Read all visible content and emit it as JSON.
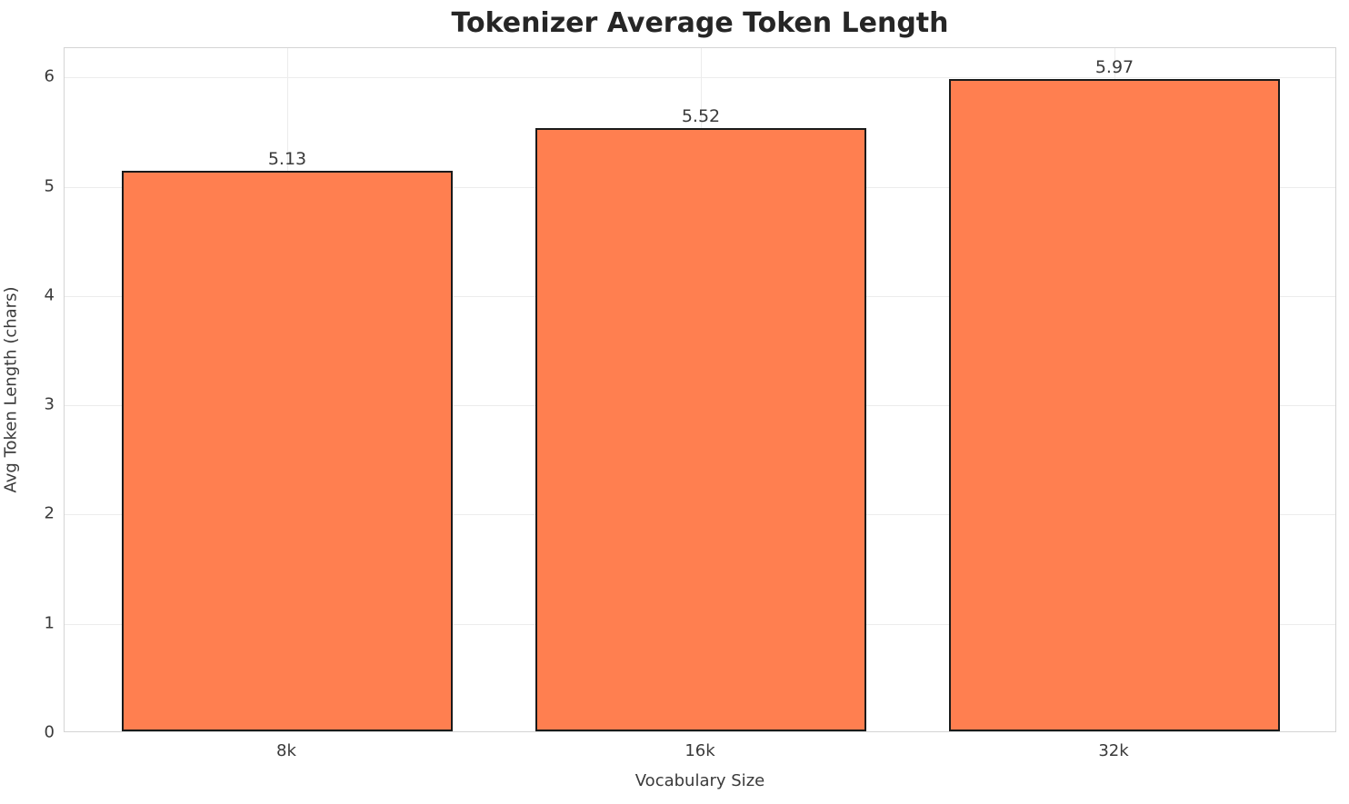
{
  "chart_data": {
    "type": "bar",
    "title": "Tokenizer Average Token Length",
    "xlabel": "Vocabulary Size",
    "ylabel": "Avg Token Length (chars)",
    "categories": [
      "8k",
      "16k",
      "32k"
    ],
    "values": [
      5.13,
      5.52,
      5.97
    ],
    "value_labels": [
      "5.13",
      "5.52",
      "5.97"
    ],
    "yticks": [
      0,
      1,
      2,
      3,
      4,
      5,
      6
    ],
    "ylim": [
      0,
      6.27
    ],
    "grid": true,
    "legend": "none",
    "bar_color": "#FF7F50",
    "bar_edge_color": "#1a1a1a",
    "grid_color": "#ececec",
    "spine_color": "#d4d4d4",
    "text_color": "#3a3a3a",
    "title_color": "#262626"
  }
}
